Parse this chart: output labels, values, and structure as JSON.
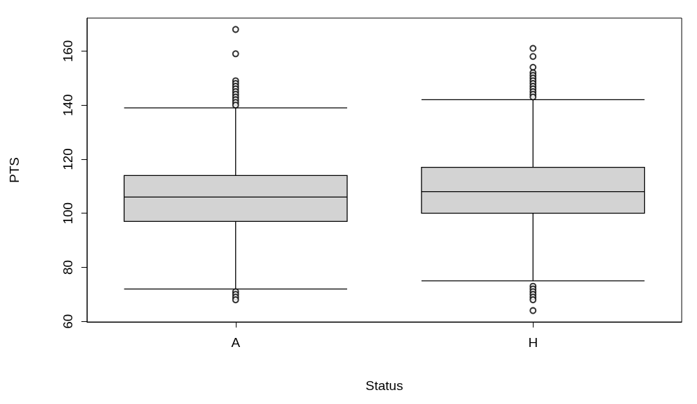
{
  "chart_data": {
    "type": "box",
    "xlabel": "Status",
    "ylabel": "PTS",
    "categories": [
      "A",
      "H"
    ],
    "boxes": [
      {
        "low": 72,
        "q1": 97,
        "median": 106,
        "q3": 114,
        "high": 139,
        "outliers": [
          168,
          159,
          149,
          148,
          147,
          146,
          145,
          144,
          143,
          142,
          141,
          140,
          71,
          70,
          69,
          68
        ]
      },
      {
        "low": 75,
        "q1": 100,
        "median": 108,
        "q3": 117,
        "high": 142,
        "outliers": [
          161,
          158,
          154,
          152,
          151,
          150,
          149,
          148,
          147,
          146,
          145,
          144,
          143,
          73,
          72,
          71,
          70,
          69,
          68,
          64
        ]
      }
    ],
    "color": "#d3d3d3",
    "ylim": [
      59.8,
      172.2
    ],
    "yticks": [
      60,
      80,
      100,
      120,
      140,
      160
    ],
    "grid": false,
    "marker": "circle"
  }
}
